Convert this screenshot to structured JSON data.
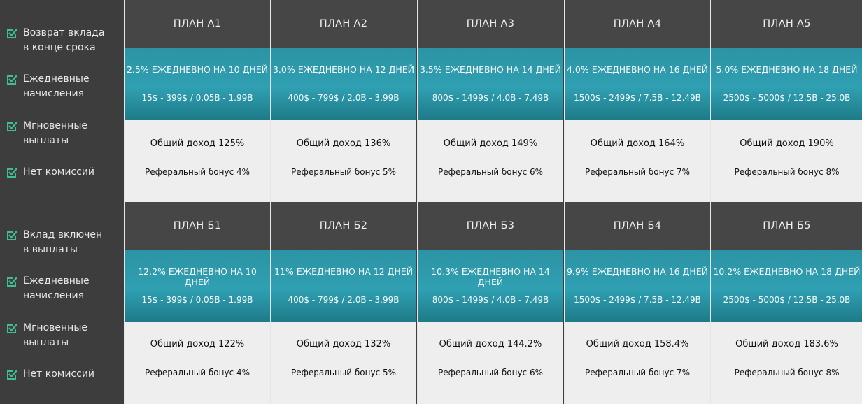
{
  "sections": [
    {
      "features": [
        "Возврат вклада в конце срока",
        "Ежедневные начисления",
        "Мгновенные выплаты",
        "Нет комиссий"
      ],
      "plans": [
        {
          "name": "ПЛАН А1",
          "rate": "2.5% ЕЖЕДНЕВНО НА 10 ДНЕЙ",
          "range": "15$ - 399$ / 0.05Ƀ - 1.99Ƀ",
          "income": "Общий доход 125%",
          "bonus": "Реферальный бонус 4%"
        },
        {
          "name": "ПЛАН А2",
          "rate": "3.0% ЕЖЕДНЕВНО НА 12 ДНЕЙ",
          "range": "400$ - 799$ / 2.0Ƀ - 3.99Ƀ",
          "income": "Общий доход 136%",
          "bonus": "Реферальный бонус 5%"
        },
        {
          "name": "ПЛАН А3",
          "rate": "3.5% ЕЖЕДНЕВНО НА 14 ДНЕЙ",
          "range": "800$ - 1499$ / 4.0Ƀ - 7.49Ƀ",
          "income": "Общий доход 149%",
          "bonus": "Реферальный бонус 6%"
        },
        {
          "name": "ПЛАН А4",
          "rate": "4.0% ЕЖЕДНЕВНО НА 16 ДНЕЙ",
          "range": "1500$ - 2499$ / 7.5Ƀ - 12.49Ƀ",
          "income": "Общий доход 164%",
          "bonus": "Реферальный бонус 7%"
        },
        {
          "name": "ПЛАН А5",
          "rate": "5.0% ЕЖЕДНЕВНО НА 18 ДНЕЙ",
          "range": "2500$ - 5000$ / 12.5Ƀ - 25.0Ƀ",
          "income": "Общий доход 190%",
          "bonus": "Реферальный бонус 8%"
        }
      ]
    },
    {
      "features": [
        "Вклад включен в выплаты",
        "Ежедневные начисления",
        "Мгновенные выплаты",
        "Нет комиссий"
      ],
      "plans": [
        {
          "name": "ПЛАН Б1",
          "rate": "12.2% ЕЖЕДНЕВНО НА 10 ДНЕЙ",
          "range": "15$ - 399$ / 0.05Ƀ - 1.99Ƀ",
          "income": "Общий доход 122%",
          "bonus": "Реферальный бонус 4%"
        },
        {
          "name": "ПЛАН Б2",
          "rate": "11% ЕЖЕДНЕВНО НА 12 ДНЕЙ",
          "range": "400$ - 799$ / 2.0Ƀ - 3.99Ƀ",
          "income": "Общий доход 132%",
          "bonus": "Реферальный бонус 5%"
        },
        {
          "name": "ПЛАН Б3",
          "rate": "10.3% ЕЖЕДНЕВНО НА 14 ДНЕЙ",
          "range": "800$ - 1499$ / 4.0Ƀ - 7.49Ƀ",
          "income": "Общий доход 144.2%",
          "bonus": "Реферальный бонус 6%"
        },
        {
          "name": "ПЛАН Б4",
          "rate": "9.9% ЕЖЕДНЕВНО НА 16 ДНЕЙ",
          "range": "1500$ - 2499$ / 7.5Ƀ - 12.49Ƀ",
          "income": "Общий доход 158.4%",
          "bonus": "Реферальный бонус 7%"
        },
        {
          "name": "ПЛАН Б5",
          "rate": "10.2% ЕЖЕДНЕВНО НА 18 ДНЕЙ",
          "range": "2500$ - 5000$ / 12.5Ƀ - 25.0Ƀ",
          "income": "Общий доход 183.6%",
          "bonus": "Реферальный бонус 8%"
        }
      ]
    }
  ],
  "colors": {
    "accent": "#2fa0b2",
    "check": "#3fbf8f",
    "sidebar": "#3d3d3d",
    "header": "#464646",
    "panel": "#eeeeee"
  },
  "icons": {
    "feature": "checkbox-check-icon"
  }
}
